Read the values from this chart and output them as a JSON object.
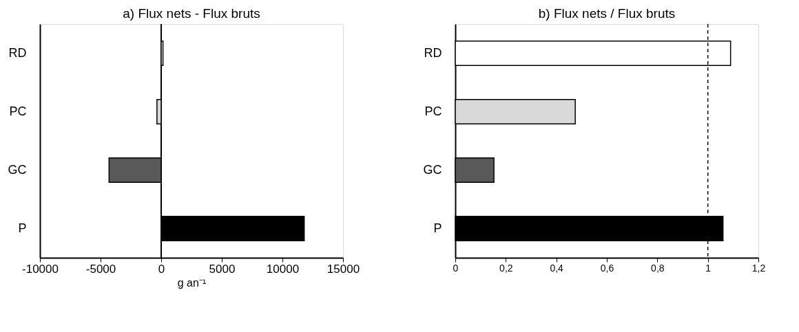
{
  "chart_data": [
    {
      "type": "bar",
      "orientation": "horizontal",
      "title": "a) Flux nets - Flux bruts",
      "xlabel": "g an⁻¹",
      "categories": [
        "RD",
        "PC",
        "GC",
        "P"
      ],
      "values": [
        150,
        -350,
        -4300,
        11800
      ],
      "colors": [
        "#ffffff",
        "#d9d9d9",
        "#595959",
        "#000000"
      ],
      "xlim": [
        -10000,
        15000
      ],
      "xticks": [
        -10000,
        -5000,
        0,
        5000,
        10000,
        15000
      ]
    },
    {
      "type": "bar",
      "orientation": "horizontal",
      "title": "b) Flux nets / Flux bruts",
      "categories": [
        "RD",
        "PC",
        "GC",
        "P"
      ],
      "values": [
        1.09,
        0.475,
        0.153,
        1.06
      ],
      "colors": [
        "#ffffff",
        "#d9d9d9",
        "#595959",
        "#000000"
      ],
      "xlim": [
        0,
        1.2
      ],
      "xticks": [
        0,
        {
          "value": 0.2,
          "label": "0,2"
        },
        {
          "value": 0.4,
          "label": "0,4"
        },
        {
          "value": 0.6,
          "label": "0,6"
        },
        {
          "value": 0.8,
          "label": "0,8"
        },
        1,
        {
          "value": 1.2,
          "label": "1,2"
        }
      ],
      "ref_lines": [
        {
          "axis": "x",
          "value": 1,
          "line_style": "dashed",
          "color": "#000000"
        }
      ]
    }
  ]
}
